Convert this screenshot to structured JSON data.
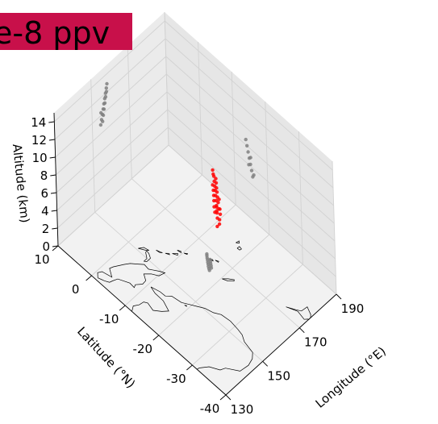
{
  "chart_data": {
    "type": "scatter",
    "projection": "3d",
    "title": "e-8 ppv",
    "xlabel": "Longitude (°E)",
    "ylabel": "Latitude (°N)",
    "zlabel": "Altitude (km)",
    "xlim": [
      130,
      190
    ],
    "ylim": [
      -40,
      10
    ],
    "zlim": [
      0,
      15
    ],
    "x_ticks": [
      "130",
      "150",
      "170",
      "190"
    ],
    "y_ticks": [
      "-40",
      "-30",
      "-20",
      "-10",
      "0",
      "10"
    ],
    "z_ticks": [
      "0",
      "2",
      "4",
      "6",
      "8",
      "10",
      "12",
      "14"
    ],
    "grid": true,
    "basemap": "coastlines",
    "banner_color": "#c8104a",
    "series": [
      {
        "role": "observations",
        "color": "#ff0000",
        "points": [
          [
            167.0,
            -17.5,
            6.2
          ],
          [
            167.4,
            -17.2,
            6.6
          ],
          [
            167.8,
            -16.9,
            7.0
          ],
          [
            168.1,
            -16.6,
            7.4
          ],
          [
            168.5,
            -16.3,
            7.8
          ],
          [
            168.9,
            -16.0,
            8.1
          ],
          [
            169.2,
            -15.7,
            8.5
          ],
          [
            169.6,
            -15.4,
            8.9
          ],
          [
            167.6,
            -17.8,
            6.4
          ],
          [
            168.0,
            -17.4,
            6.9
          ],
          [
            168.4,
            -17.0,
            7.3
          ],
          [
            168.8,
            -16.7,
            7.7
          ],
          [
            169.1,
            -16.4,
            8.0
          ],
          [
            169.5,
            -16.1,
            8.4
          ],
          [
            169.9,
            -15.8,
            8.7
          ],
          [
            166.8,
            -17.0,
            5.9
          ],
          [
            167.2,
            -16.6,
            6.3
          ],
          [
            167.7,
            -16.3,
            6.8
          ],
          [
            168.2,
            -16.0,
            7.2
          ],
          [
            168.6,
            -15.7,
            7.6
          ],
          [
            169.0,
            -15.3,
            8.0
          ],
          [
            166.5,
            -17.9,
            5.6
          ],
          [
            166.9,
            -17.6,
            6.0
          ],
          [
            167.3,
            -17.3,
            6.5
          ],
          [
            167.9,
            -18.0,
            5.8
          ],
          [
            168.3,
            -17.7,
            6.2
          ],
          [
            165.8,
            -18.2,
            4.9
          ],
          [
            166.3,
            -18.6,
            5.2
          ],
          [
            169.8,
            -15.1,
            9.0
          ],
          [
            170.1,
            -14.8,
            9.3
          ],
          [
            168.7,
            -17.3,
            7.1
          ],
          [
            167.1,
            -18.2,
            5.4
          ]
        ]
      },
      {
        "role": "projection-on-floor",
        "color": "#808080",
        "points": [
          [
            163.6,
            -16.5,
            0
          ],
          [
            164.1,
            -16.1,
            0
          ],
          [
            164.7,
            -15.7,
            0
          ],
          [
            165.2,
            -15.3,
            0
          ],
          [
            165.8,
            -14.9,
            0
          ],
          [
            166.3,
            -14.5,
            0
          ],
          [
            166.9,
            -14.1,
            0
          ],
          [
            164.4,
            -16.8,
            0
          ],
          [
            165.0,
            -16.4,
            0
          ],
          [
            165.5,
            -16.0,
            0
          ],
          [
            166.1,
            -15.6,
            0
          ],
          [
            166.6,
            -15.2,
            0
          ],
          [
            163.2,
            -16.9,
            0
          ],
          [
            167.4,
            -13.8,
            0
          ]
        ]
      },
      {
        "role": "projection-on-latitude-wall",
        "color": "#808080",
        "points": [
          [
            154.5,
            10,
            9.0
          ],
          [
            155.0,
            10,
            9.5
          ],
          [
            155.5,
            10,
            10.0
          ],
          [
            156.0,
            10,
            10.5
          ],
          [
            156.5,
            10,
            11.0
          ],
          [
            157.0,
            10,
            11.5
          ],
          [
            157.5,
            10,
            12.0
          ],
          [
            158.0,
            10,
            12.5
          ],
          [
            155.5,
            10,
            9.2
          ],
          [
            156.0,
            10,
            9.8
          ],
          [
            156.5,
            10,
            10.4
          ],
          [
            157.0,
            10,
            11.0
          ],
          [
            157.5,
            10,
            11.6
          ],
          [
            158.0,
            10,
            12.1
          ],
          [
            154.8,
            10,
            10.3
          ],
          [
            158.4,
            10,
            12.9
          ]
        ]
      },
      {
        "role": "projection-on-longitude-wall",
        "color": "#808080",
        "points": [
          [
            190,
            -15.5,
            5.0
          ],
          [
            190,
            -15.2,
            5.6
          ],
          [
            190,
            -14.9,
            6.2
          ],
          [
            190,
            -14.6,
            6.8
          ],
          [
            190,
            -14.3,
            7.4
          ],
          [
            190,
            -14.0,
            8.0
          ],
          [
            190,
            -15.8,
            5.3
          ],
          [
            190,
            -13.7,
            8.6
          ],
          [
            190,
            -15.0,
            7.0
          ],
          [
            190,
            -14.4,
            6.0
          ]
        ]
      }
    ]
  }
}
